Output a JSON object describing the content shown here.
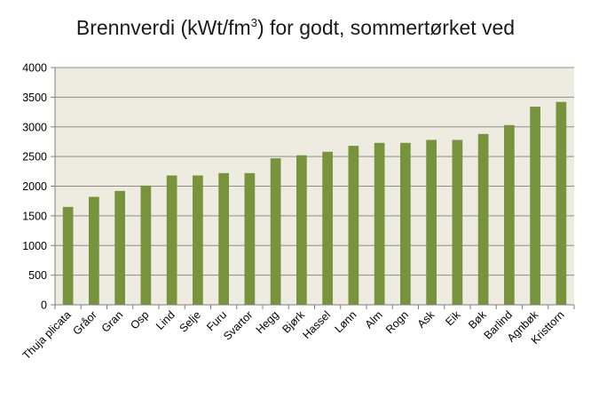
{
  "chart_data": {
    "type": "bar",
    "title_parts": {
      "before": "Brennverdi (kWt/fm",
      "superscript": "3",
      "after": ")  for godt, sommertørket ved"
    },
    "categories": [
      "Thuja plicata",
      "Gråor",
      "Gran",
      "Osp",
      "Lind",
      "Selje",
      "Furu",
      "Svartor",
      "Hegg",
      "Bjørk",
      "Hassel",
      "Lønn",
      "Alm",
      "Rogn",
      "Ask",
      "Eik",
      "Bøk",
      "Barlind",
      "Agnbøk",
      "Kristtorn"
    ],
    "values": [
      1650,
      1820,
      1920,
      2010,
      2180,
      2180,
      2220,
      2220,
      2470,
      2520,
      2580,
      2680,
      2730,
      2730,
      2780,
      2780,
      2880,
      3030,
      3340,
      3420
    ],
    "ylim": [
      0,
      4000
    ],
    "yticks": [
      0,
      500,
      1000,
      1500,
      2000,
      2500,
      3000,
      3500,
      4000
    ],
    "grid": true,
    "legend": "none",
    "colors": {
      "bar": "#77933c",
      "plot_background": "#eeece1",
      "gridline": "#8c8c8c",
      "axis": "#7f7f7f"
    }
  }
}
